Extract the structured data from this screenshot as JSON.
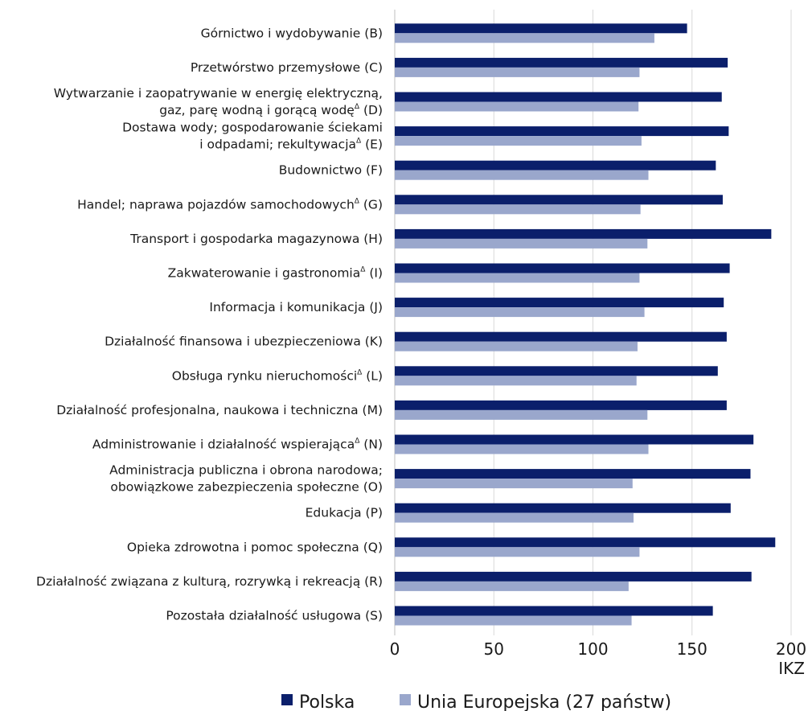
{
  "chart_data": {
    "type": "bar",
    "orientation": "horizontal",
    "categories": [
      [
        "Górnictwo i wydobywanie (B)"
      ],
      [
        "Przetwórstwo przemysłowe (C)"
      ],
      [
        "Wytwarzanie i zaopatrywanie w energię elektryczną,",
        "gaz, parę wodną i gorącą wodę",
        "Δ",
        " (D)"
      ],
      [
        "Dostawa wody; gospodarowanie ściekami",
        "i odpadami; rekultywacja",
        "Δ",
        " (E)"
      ],
      [
        "Budownictwo (F)"
      ],
      [
        "Handel; naprawa pojazdów samochodowych",
        "Δ",
        " (G)"
      ],
      [
        "Transport i gospodarka magazynowa (H)"
      ],
      [
        "Zakwaterowanie i gastronomia",
        "Δ",
        " (I)"
      ],
      [
        "Informacja i komunikacja (J)"
      ],
      [
        "Działalność finansowa i ubezpieczeniowa (K)"
      ],
      [
        "Obsługa rynku nieruchomości",
        "Δ",
        " (L)"
      ],
      [
        "Działalność profesjonalna, naukowa i techniczna (M)"
      ],
      [
        "Administrowanie i działalność wspierająca",
        "Δ",
        " (N)"
      ],
      [
        "Administracja publiczna i obrona  narodowa;",
        "obowiązkowe zabezpieczenia społeczne (O)"
      ],
      [
        "Edukacja (P)"
      ],
      [
        "Opieka zdrowotna i pomoc społeczna (Q)"
      ],
      [
        "Działalność związana z kulturą, rozrywką i rekreacją (R)"
      ],
      [
        "Pozostała działalność usługowa (S)"
      ]
    ],
    "series": [
      {
        "name": "Polska",
        "color": "#0b1f6b",
        "values": [
          147.5,
          168,
          165,
          168.5,
          162,
          165.5,
          190,
          169,
          166,
          167.5,
          163,
          167.5,
          181,
          179.5,
          169.5,
          192,
          180,
          160.5
        ]
      },
      {
        "name": "Unia Europejska (27 państw)",
        "color": "#9aa7cc",
        "values": [
          131,
          123.5,
          123,
          124.5,
          128,
          124,
          127.5,
          123.5,
          126,
          122.5,
          122,
          127.5,
          128,
          120,
          120.5,
          123.5,
          118,
          119.5
        ]
      }
    ],
    "xlim": [
      0,
      200
    ],
    "xticks": [
      "0",
      "50",
      "100",
      "150",
      "200"
    ],
    "xlabel": "IKZ",
    "legend_position": "bottom"
  }
}
